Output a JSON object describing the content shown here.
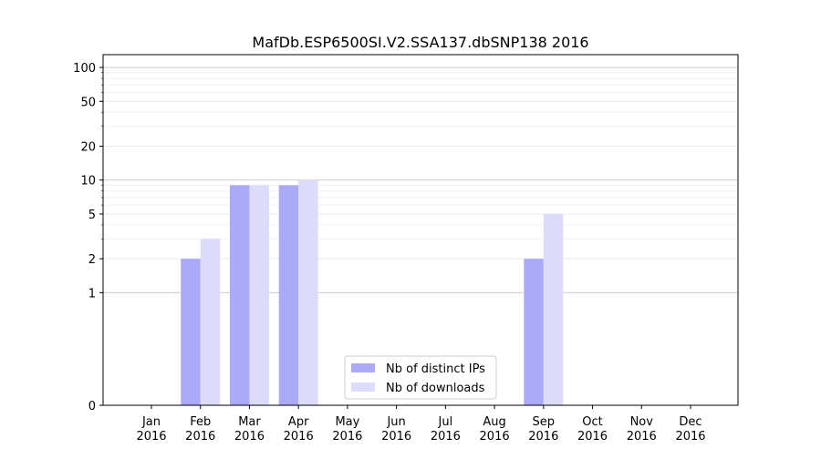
{
  "chart_data": {
    "type": "bar",
    "title": "MafDb.ESP6500SI.V2.SSA137.dbSNP138 2016",
    "xlabel": "",
    "ylabel": "",
    "y_scale": "symlog",
    "y_ticks": [
      0,
      1,
      2,
      5,
      10,
      20,
      50,
      100
    ],
    "y_tick_labels": [
      "0",
      "1",
      "2",
      "5",
      "10",
      "20",
      "50",
      "100"
    ],
    "categories": [
      "Jan\n2016",
      "Feb\n2016",
      "Mar\n2016",
      "Apr\n2016",
      "May\n2016",
      "Jun\n2016",
      "Jul\n2016",
      "Aug\n2016",
      "Sep\n2016",
      "Oct\n2016",
      "Nov\n2016",
      "Dec\n2016"
    ],
    "series": [
      {
        "name": "Nb of distinct IPs",
        "color": "#aaaaf8",
        "values": [
          0,
          2,
          9,
          9,
          0,
          0,
          0,
          0,
          2,
          0,
          0,
          0
        ]
      },
      {
        "name": "Nb of downloads",
        "color": "#dcdcfa",
        "values": [
          0,
          3,
          9,
          10,
          0,
          0,
          0,
          0,
          5,
          0,
          0,
          0
        ]
      }
    ],
    "legend_position": "bottom-center",
    "grid": "horizontal"
  }
}
